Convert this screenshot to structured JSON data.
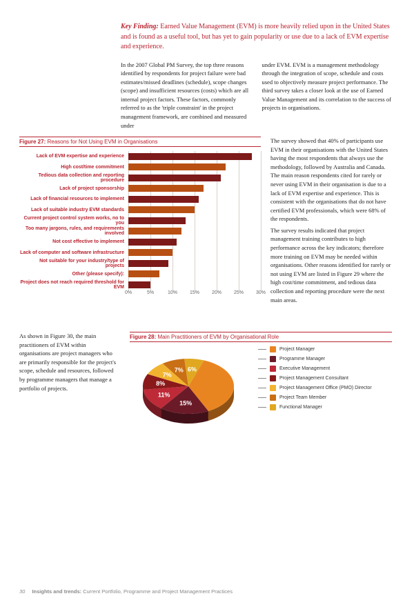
{
  "key_finding": {
    "label": "Key Finding:",
    "text": "Earned Value Management (EVM) is more heavily relied upon in the United States and is found as a useful tool, but has yet to gain popularity or use due to a lack of EVM expertise and experience."
  },
  "body": {
    "col1": "In the 2007 Global PM Survey, the top three reasons identified by respondents for project failure were bad estimates/missed deadlines (schedule), scope changes (scope) and insufficient resources (costs)  which are all internal project factors. These factors, commonly referred to as the 'triple constraint' in the project management framework, are combined and measured under",
    "col2_top": "under EVM.  EVM is a management methodology through the integration of scope, schedule and costs used to objectively measure project performance. The third survey takes a closer look at the use of Earned Value Management and its correlation to the success of projects in organisations.",
    "aside_p1": "The survey showed that 40% of participants use EVM in their organisations with the United States having the most respondents that always use the methodology, followed by Australia and Canada. The main reason respondents cited for rarely or never using EVM in their organisation is due to a lack of EVM expertise and experience. This is consistent with the organisations that do not have certified EVM professionals, which were 68% of the respondents.",
    "aside_p2": "The survey results indicated that project management training contributes to high performance across the key indicators; therefore more training on EVM may be needed within organisations. Other reasons identified for rarely or not using EVM are listed in Figure 29 where the high cost/time commitment, and tedious data collection and reporting procedure were the next main areas."
  },
  "fig27": {
    "label": "Figure 27:",
    "title": "Reasons for Not Using EVM in Organisations",
    "xmax": 30,
    "xtick_step": 5,
    "grid_color": "#d8d0c8",
    "label_color": "#b8232f",
    "items": [
      {
        "label": "Lack of EVM expertise and experience",
        "value": 28,
        "color": "#7d1a1a"
      },
      {
        "label": "High cost/time commitment",
        "value": 22,
        "color": "#b85014"
      },
      {
        "label": "Tedious data collection and reporting procedure",
        "value": 21,
        "color": "#7d1a1a"
      },
      {
        "label": "Lack of project sponsorship",
        "value": 17,
        "color": "#b85014"
      },
      {
        "label": "Lack of financial resources to implement",
        "value": 16,
        "color": "#7d1a1a"
      },
      {
        "label": "Lack of suitable industry EVM standards",
        "value": 15,
        "color": "#b85014"
      },
      {
        "label": "Current project control system works, no to you",
        "value": 13,
        "color": "#7d1a1a"
      },
      {
        "label": "Too many jargons, rules, and requirements involved",
        "value": 12,
        "color": "#b85014"
      },
      {
        "label": "Not cost effective to implement",
        "value": 11,
        "color": "#7d1a1a"
      },
      {
        "label": "Lack of computer and software infrastructure",
        "value": 10,
        "color": "#b85014"
      },
      {
        "label": "Not suitable for your industry/type of projects",
        "value": 9,
        "color": "#7d1a1a"
      },
      {
        "label": "Other (please specify):",
        "value": 7,
        "color": "#b85014"
      },
      {
        "label": "Project does not reach required threshold for EVM",
        "value": 5,
        "color": "#7d1a1a"
      }
    ]
  },
  "fig28": {
    "label": "Figure 28:",
    "title": "Main Practitioners of EVM by Organisational Role",
    "aside": "As shown in Figure 30, the main practitioners of EVM within organisations are project managers who are primarily responsible for the project's scope, schedule and resources, followed by programme managers that manage a portfolio of projects.",
    "slices": [
      {
        "label": "Project Manager",
        "value": 32,
        "color": "#e98521"
      },
      {
        "label": "Programme Manager",
        "value": 15,
        "color": "#6b1b28"
      },
      {
        "label": "Executive Management",
        "value": 11,
        "color": "#be2a37"
      },
      {
        "label": "Project Management Consultant",
        "value": 8,
        "color": "#8a1a1a"
      },
      {
        "label": "Project Management Office (PMO) Director",
        "value": 7,
        "color": "#f2b430"
      },
      {
        "label": "Project Team Member",
        "value": 7,
        "color": "#c96f15"
      },
      {
        "label": "Functional Manager",
        "value": 6,
        "color": "#e0a820"
      }
    ],
    "label_text_color": "#ffffff",
    "label_alt_color": "#e98521"
  },
  "footer": {
    "page": "30",
    "title_bold": "Insights and trends:",
    "title_rest": "Current Portfolio, Programme and Project Management Practices"
  }
}
